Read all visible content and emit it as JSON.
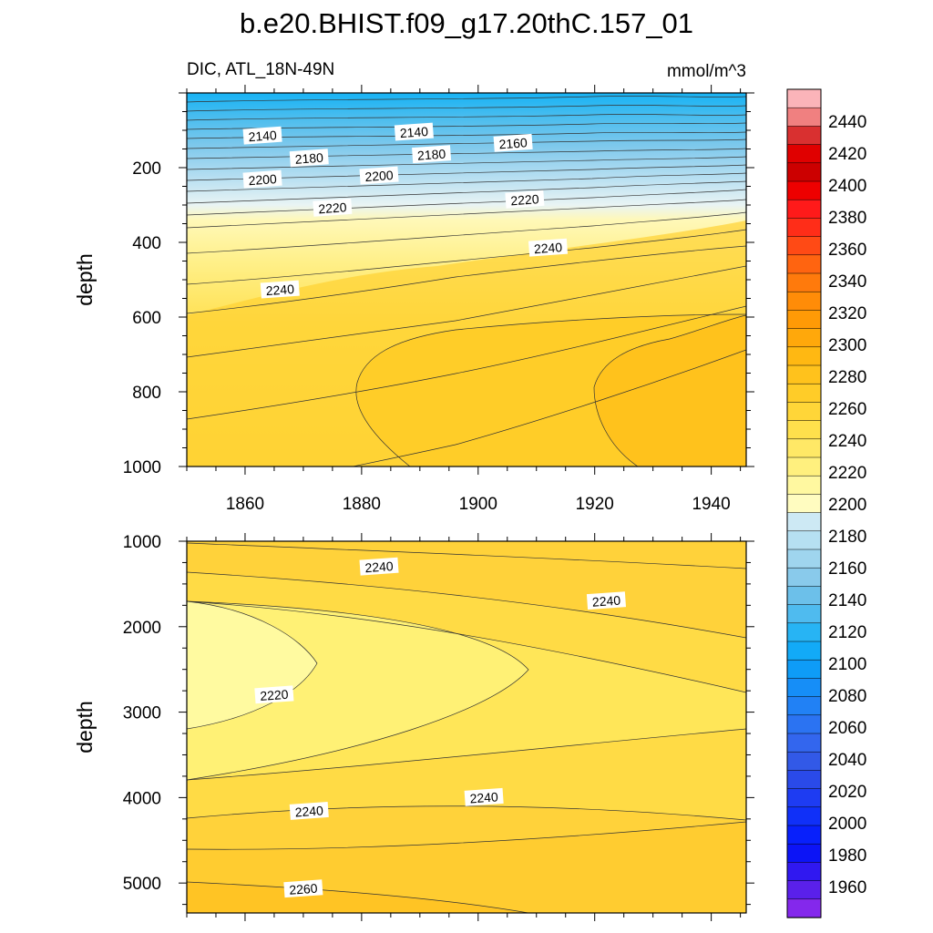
{
  "figure": {
    "title": "b.e20.BHIST.f09_g17.20thC.157_01",
    "left_string": "DIC, ATL_18N-49N",
    "right_string": "mmol/m^3"
  },
  "colorbar": {
    "labels": [
      "2440",
      "2420",
      "2400",
      "2380",
      "2360",
      "2340",
      "2320",
      "2300",
      "2280",
      "2260",
      "2240",
      "2220",
      "2200",
      "2180",
      "2160",
      "2140",
      "2120",
      "2100",
      "2080",
      "2060",
      "2040",
      "2020",
      "2000",
      "1980",
      "1960"
    ],
    "colors": [
      "#fbb4b9",
      "#f08080",
      "#d93030",
      "#e00000",
      "#cc0000",
      "#ee0000",
      "#ff1a1a",
      "#ff2d18",
      "#ff4a15",
      "#ff6410",
      "#ff7a0c",
      "#ff8c08",
      "#ff9a06",
      "#ffa80b",
      "#ffb812",
      "#ffc21c",
      "#ffcc28",
      "#ffd638",
      "#ffe04c",
      "#ffe866",
      "#fff07e",
      "#fff8a0",
      "#fffcc0",
      "#cde9f4",
      "#b6e0f2",
      "#9fd5ee",
      "#89caeb",
      "#6cc0ea",
      "#4fbbef",
      "#27b4f4",
      "#12aaf7",
      "#0e9cf7",
      "#168ef7",
      "#2181f5",
      "#2b73f2",
      "#3366ee",
      "#3259e7",
      "#2a4ae9",
      "#1e3cf2",
      "#1030f8",
      "#0820fb",
      "#0c14f6",
      "#3018f0",
      "#5a20ea",
      "#8428ec"
    ]
  },
  "chart_data": [
    {
      "type": "contour",
      "name": "upper",
      "x_ticks": [
        1860,
        1880,
        1900,
        1920,
        1940
      ],
      "xlim": [
        1850,
        1946
      ],
      "ylabel": "depth",
      "ylim": [
        0,
        1000
      ],
      "y_reversed": true,
      "y_ticks": [
        200,
        400,
        600,
        800,
        1000
      ],
      "contour_labels": [
        {
          "text": "2140",
          "x": 1863,
          "y": 115
        },
        {
          "text": "2140",
          "x": 1889,
          "y": 105
        },
        {
          "text": "2160",
          "x": 1906,
          "y": 135
        },
        {
          "text": "2180",
          "x": 1871,
          "y": 175
        },
        {
          "text": "2180",
          "x": 1892,
          "y": 165
        },
        {
          "text": "2200",
          "x": 1863,
          "y": 232
        },
        {
          "text": "2200",
          "x": 1883,
          "y": 222
        },
        {
          "text": "2220",
          "x": 1875,
          "y": 308
        },
        {
          "text": "2220",
          "x": 1908,
          "y": 286
        },
        {
          "text": "2240",
          "x": 1912,
          "y": 415
        },
        {
          "text": "2240",
          "x": 1866,
          "y": 527
        }
      ]
    },
    {
      "type": "contour",
      "name": "lower",
      "ylabel": "depth",
      "ylim": [
        1000,
        5350
      ],
      "y_reversed": true,
      "y_ticks": [
        1000,
        2000,
        3000,
        4000,
        5000
      ],
      "contour_labels": [
        {
          "text": "2240",
          "x": 1883,
          "y": 1300
        },
        {
          "text": "2240",
          "x": 1922,
          "y": 1700
        },
        {
          "text": "2220",
          "x": 1865,
          "y": 2800
        },
        {
          "text": "2240",
          "x": 1871,
          "y": 4160
        },
        {
          "text": "2240",
          "x": 1901,
          "y": 4000
        },
        {
          "text": "2260",
          "x": 1870,
          "y": 5070
        }
      ]
    }
  ]
}
